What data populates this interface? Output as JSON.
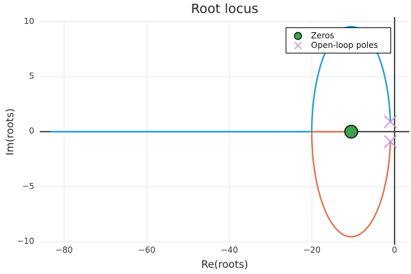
{
  "title": "Root locus",
  "axes": {
    "xlabel": "Re(roots)",
    "ylabel": "Im(roots)",
    "xticks": [
      {
        "value": -80,
        "label": "−80"
      },
      {
        "value": -60,
        "label": "−60"
      },
      {
        "value": -40,
        "label": "−40"
      },
      {
        "value": -20,
        "label": "−20"
      },
      {
        "value": 0,
        "label": "0"
      }
    ],
    "yticks": [
      {
        "value": 10,
        "label": "10"
      },
      {
        "value": 5,
        "label": "5"
      },
      {
        "value": 0,
        "label": "0"
      },
      {
        "value": -5,
        "label": "−5"
      },
      {
        "value": -10,
        "label": "−10"
      }
    ]
  },
  "legend": {
    "items": [
      {
        "label": "Zeros",
        "marker": "circle",
        "color": "#3CA24C",
        "edge_color": "#111111"
      },
      {
        "label": "Open-loop poles",
        "marker": "x",
        "color": "#CE90DC"
      }
    ]
  },
  "colors": {
    "branch1": "#1E9BE0",
    "branch2": "#E2704C",
    "zero_marker": "#3CA24C",
    "pole_marker": "#CE90DC",
    "origin_axes": "#2F2F33",
    "grid": "#E8E8E8",
    "text": "#2B2B2B"
  },
  "chart_data": {
    "type": "line",
    "title": "Root locus",
    "xlabel": "Re(roots)",
    "ylabel": "Im(roots)",
    "xlim": [
      -85.9,
      3.6
    ],
    "ylim": [
      -10,
      10
    ],
    "xticks": [
      -80,
      -60,
      -40,
      -20,
      0
    ],
    "yticks": [
      -10,
      -5,
      0,
      5,
      10
    ],
    "grid": true,
    "origin_axes_drawn": true,
    "legend_position": "top-right-inside",
    "zeros": [
      {
        "re": -10.5,
        "im": 0
      }
    ],
    "open_loop_poles": [
      {
        "re": -1,
        "im": 0.9
      },
      {
        "re": -1,
        "im": -0.9
      }
    ],
    "locus_geometry": {
      "description": "Two root-locus branches: a circle centered at the zero passing through both complex poles, with break-in on the real axis; one branch then runs to the zero, the other toward -infinity along the real axis.",
      "circle_center_re": -10.5,
      "circle_radius": 9.54,
      "breakin_re": -20.04,
      "real_axis_extent_re": -83
    },
    "series": [
      {
        "name": "locus-branch-1",
        "color": "#1E9BE0",
        "path": "upper pole → over top of circle → break-in → real axis left to −83"
      },
      {
        "name": "locus-branch-2",
        "color": "#E2704C",
        "path": "lower pole → under bottom of circle → break-in → real axis right to zero at −10.5"
      }
    ]
  }
}
